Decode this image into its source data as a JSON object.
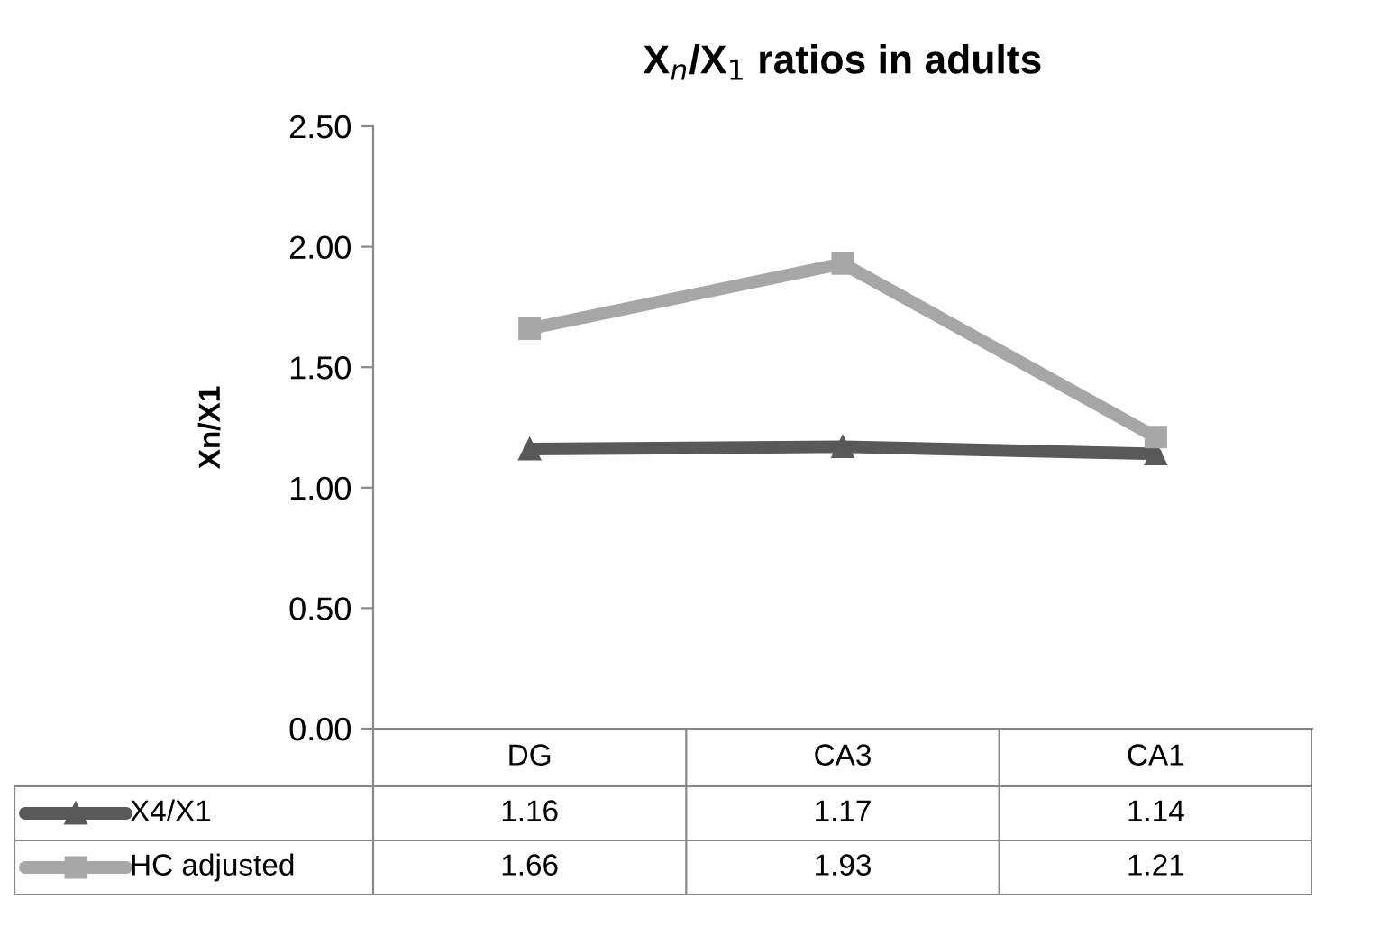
{
  "chart_data": {
    "type": "line",
    "title": "X$_{n}$/X$_{1}$ ratios in adults",
    "ylabel": "Xn/X1",
    "categories": [
      "DG",
      "CA3",
      "CA1"
    ],
    "series": [
      {
        "name": "X4/X1",
        "color": "#595959",
        "values": [
          1.16,
          1.17,
          1.14
        ],
        "marker": "triangle"
      },
      {
        "name": "HC adjusted",
        "color": "#a6a6a6",
        "values": [
          1.66,
          1.93,
          1.21
        ],
        "marker": "square"
      }
    ],
    "ylim": [
      0,
      2.5
    ],
    "yticks": [
      {
        "value": 0,
        "label": "0.00"
      },
      {
        "value": 0.5,
        "label": "0.50"
      },
      {
        "value": 1,
        "label": "1.00"
      },
      {
        "value": 1.5,
        "label": "1.50"
      },
      {
        "value": 2,
        "label": "2.00"
      },
      {
        "value": 2.5,
        "label": "2.50"
      }
    ],
    "grid": false,
    "legend": "bottom",
    "data_labels": true
  }
}
